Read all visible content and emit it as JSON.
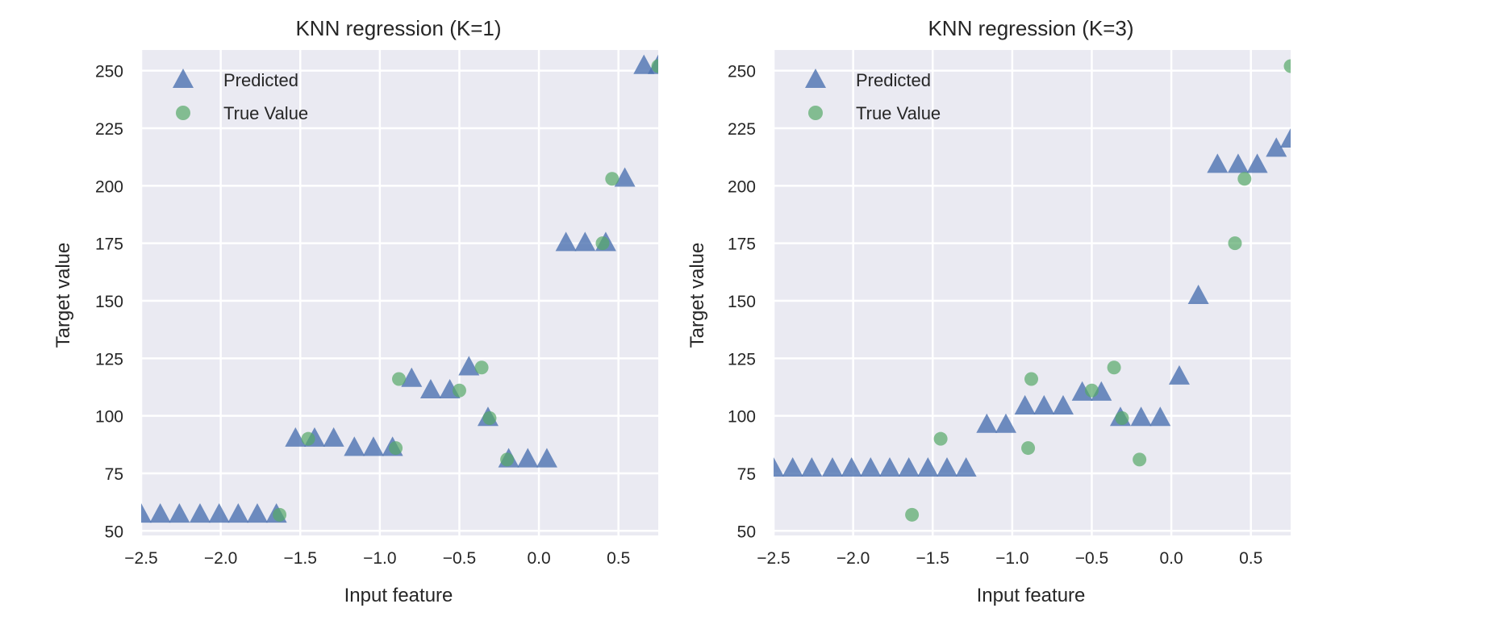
{
  "colors": {
    "plot_background": "#EAEAF2",
    "grid": "#FFFFFF",
    "predicted": "#4C72B0",
    "true_value": "#55A868",
    "text": "#262626"
  },
  "chart_data": [
    {
      "type": "scatter",
      "title": "KNN regression (K=1)",
      "xlabel": "Input feature",
      "ylabel": "Target value",
      "xlim": [
        -2.5,
        0.75
      ],
      "ylim": [
        48,
        259
      ],
      "xticks": [
        -2.5,
        -2.0,
        -1.5,
        -1.0,
        -0.5,
        0.0,
        0.5
      ],
      "xtick_labels": [
        "−2.5",
        "−2.0",
        "−1.5",
        "−1.0",
        "−0.5",
        "0.0",
        "0.5"
      ],
      "yticks": [
        50,
        75,
        100,
        125,
        150,
        175,
        200,
        225,
        250
      ],
      "ytick_labels": [
        "50",
        "75",
        "100",
        "125",
        "150",
        "175",
        "200",
        "225",
        "250"
      ],
      "grid": true,
      "legend_position": "top-left",
      "series": [
        {
          "name": "Predicted",
          "marker": "triangle",
          "x": [
            -2.5,
            -2.38,
            -2.26,
            -2.13,
            -2.01,
            -1.89,
            -1.77,
            -1.65,
            -1.53,
            -1.41,
            -1.29,
            -1.16,
            -1.04,
            -0.92,
            -0.8,
            -0.68,
            -0.56,
            -0.44,
            -0.32,
            -0.19,
            -0.07,
            0.05,
            0.17,
            0.29,
            0.42,
            0.54,
            0.66,
            0.75
          ],
          "y": [
            57,
            57,
            57,
            57,
            57,
            57,
            57,
            57,
            90,
            90,
            90,
            86,
            86,
            86,
            116,
            111,
            111,
            121,
            99,
            81,
            81,
            81,
            175,
            175,
            175,
            203,
            252,
            252
          ]
        },
        {
          "name": "True Value",
          "marker": "circle",
          "x": [
            -1.63,
            -1.45,
            -0.9,
            -0.88,
            -0.5,
            -0.36,
            -0.31,
            -0.2,
            0.4,
            0.46,
            0.75
          ],
          "y": [
            57,
            90,
            86,
            116,
            111,
            121,
            99,
            81,
            175,
            203,
            252
          ]
        }
      ]
    },
    {
      "type": "scatter",
      "title": "KNN regression (K=3)",
      "xlabel": "Input feature",
      "ylabel": "Target value",
      "xlim": [
        -2.5,
        0.75
      ],
      "ylim": [
        48,
        259
      ],
      "xticks": [
        -2.5,
        -2.0,
        -1.5,
        -1.0,
        -0.5,
        0.0,
        0.5
      ],
      "xtick_labels": [
        "−2.5",
        "−2.0",
        "−1.5",
        "−1.0",
        "−0.5",
        "0.0",
        "0.5"
      ],
      "yticks": [
        50,
        75,
        100,
        125,
        150,
        175,
        200,
        225,
        250
      ],
      "ytick_labels": [
        "50",
        "75",
        "100",
        "125",
        "150",
        "175",
        "200",
        "225",
        "250"
      ],
      "grid": true,
      "legend_position": "top-left",
      "series": [
        {
          "name": "Predicted",
          "marker": "triangle",
          "x": [
            -2.5,
            -2.38,
            -2.26,
            -2.13,
            -2.01,
            -1.89,
            -1.77,
            -1.65,
            -1.53,
            -1.41,
            -1.29,
            -1.16,
            -1.04,
            -0.92,
            -0.8,
            -0.68,
            -0.56,
            -0.44,
            -0.32,
            -0.19,
            -0.07,
            0.05,
            0.17,
            0.29,
            0.42,
            0.54,
            0.66,
            0.75
          ],
          "y": [
            77,
            77,
            77,
            77,
            77,
            77,
            77,
            77,
            77,
            77,
            77,
            96,
            96,
            104,
            104,
            104,
            110,
            110,
            99,
            99,
            99,
            117,
            152,
            209,
            209,
            209,
            216,
            220
          ]
        },
        {
          "name": "True Value",
          "marker": "circle",
          "x": [
            -1.63,
            -1.45,
            -0.9,
            -0.88,
            -0.5,
            -0.36,
            -0.31,
            -0.2,
            0.4,
            0.46,
            0.75
          ],
          "y": [
            57,
            90,
            86,
            116,
            111,
            121,
            99,
            81,
            175,
            203,
            252
          ]
        }
      ]
    }
  ]
}
